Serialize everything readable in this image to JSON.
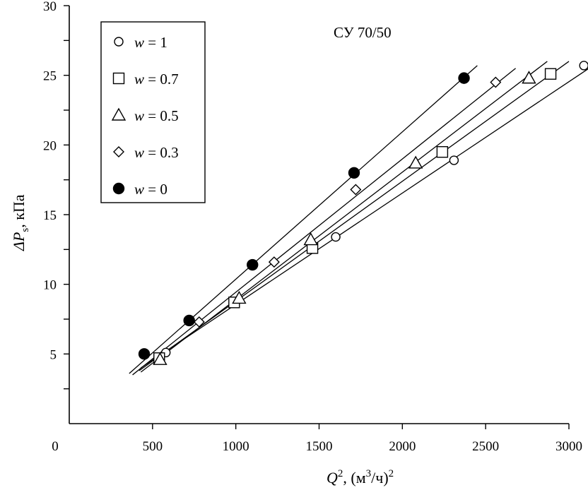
{
  "chart_data": {
    "type": "scatter",
    "annotation": "СУ 70/50",
    "xlabel": {
      "symbol": "Q",
      "sup": "2",
      "rest": ", (м",
      "sup2": "3",
      "rest2": "/ч)",
      "sup3": "2"
    },
    "ylabel": {
      "symbol": "ΔP",
      "sub": "s",
      "rest": ", кПа"
    },
    "x_ticks": [
      "0",
      "500",
      "1000",
      "1500",
      "2000",
      "2500",
      "3000"
    ],
    "y_ticks": [
      "5",
      "10",
      "15",
      "20",
      "25",
      "30"
    ],
    "xlim": [
      0,
      3000
    ],
    "ylim": [
      0,
      30
    ],
    "legend_position": "top-left",
    "series": [
      {
        "name": "w = 1",
        "var": "w",
        "value": "= 1",
        "marker": "circle-open",
        "x": [
          580,
          1600,
          2310,
          3090
        ],
        "y": [
          5.1,
          13.4,
          18.9,
          25.7
        ],
        "fit": [
          [
            430,
            4.0
          ],
          [
            3120,
            25.5
          ]
        ]
      },
      {
        "name": "w = 0.7",
        "var": "w",
        "value": "= 0.7",
        "marker": "square-open",
        "x": [
          540,
          990,
          1460,
          2240,
          2890
        ],
        "y": [
          4.7,
          8.7,
          12.6,
          19.5,
          25.1
        ],
        "fit": [
          [
            420,
            3.8
          ],
          [
            3000,
            26.0
          ]
        ]
      },
      {
        "name": "w = 0.5",
        "var": "w",
        "value": "= 0.5",
        "marker": "triangle-open",
        "x": [
          545,
          1020,
          1450,
          2080,
          2760
        ],
        "y": [
          4.6,
          9.0,
          13.2,
          18.7,
          24.8
        ],
        "fit": [
          [
            430,
            3.7
          ],
          [
            2870,
            26.0
          ]
        ]
      },
      {
        "name": "w = 0.3",
        "var": "w",
        "value": "= 0.3",
        "marker": "diamond-open",
        "x": [
          780,
          1230,
          1720,
          2560
        ],
        "y": [
          7.3,
          11.6,
          16.8,
          24.5
        ],
        "fit": [
          [
            380,
            3.5
          ],
          [
            2680,
            25.5
          ]
        ]
      },
      {
        "name": "w = 0",
        "var": "w",
        "value": "= 0",
        "marker": "circle-filled",
        "x": [
          450,
          720,
          1100,
          1710,
          2370
        ],
        "y": [
          5.0,
          7.4,
          11.4,
          18.0,
          24.8
        ],
        "fit": [
          [
            360,
            3.6
          ],
          [
            2450,
            25.7
          ]
        ]
      }
    ]
  }
}
